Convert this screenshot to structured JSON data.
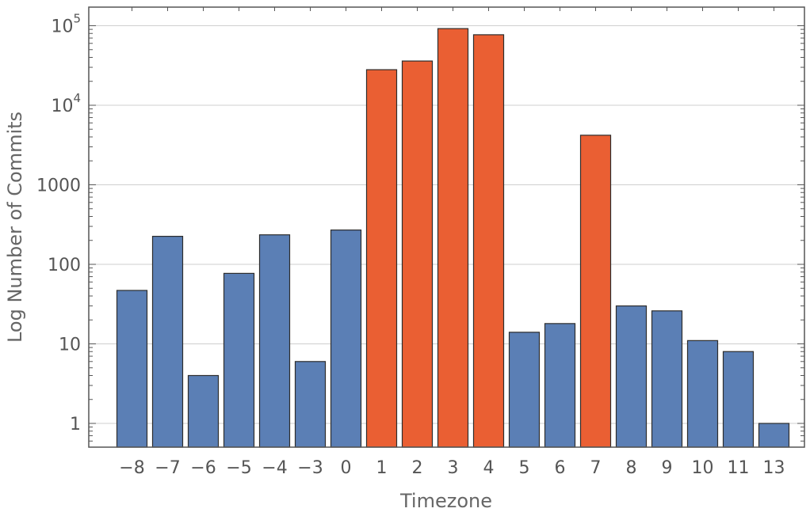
{
  "chart_data": {
    "type": "bar",
    "xlabel": "Timezone",
    "ylabel": "Log Number of Commits",
    "yscale": "log",
    "ylim": [
      0.5,
      160000
    ],
    "grid": true,
    "categories": [
      "−8",
      "−7",
      "−6",
      "−5",
      "−4",
      "−3",
      "0",
      "1",
      "2",
      "3",
      "4",
      "5",
      "6",
      "7",
      "8",
      "9",
      "10",
      "11",
      "13"
    ],
    "values": [
      47,
      225,
      4,
      77,
      235,
      6,
      270,
      28000,
      36000,
      92000,
      77000,
      14,
      18,
      4200,
      30,
      26,
      11,
      8,
      1
    ],
    "bar_colors": [
      "#5b7fb5",
      "#5b7fb5",
      "#5b7fb5",
      "#5b7fb5",
      "#5b7fb5",
      "#5b7fb5",
      "#5b7fb5",
      "#ea5f33",
      "#ea5f33",
      "#ea5f33",
      "#ea5f33",
      "#5b7fb5",
      "#5b7fb5",
      "#ea5f33",
      "#5b7fb5",
      "#5b7fb5",
      "#5b7fb5",
      "#5b7fb5",
      "#5b7fb5"
    ],
    "yticks": [
      {
        "value": 1,
        "base": "1",
        "exp": ""
      },
      {
        "value": 10,
        "base": "10",
        "exp": ""
      },
      {
        "value": 100,
        "base": "100",
        "exp": ""
      },
      {
        "value": 1000,
        "base": "1000",
        "exp": ""
      },
      {
        "value": 10000,
        "base": "10",
        "exp": "4"
      },
      {
        "value": 100000,
        "base": "10",
        "exp": "5"
      }
    ]
  }
}
